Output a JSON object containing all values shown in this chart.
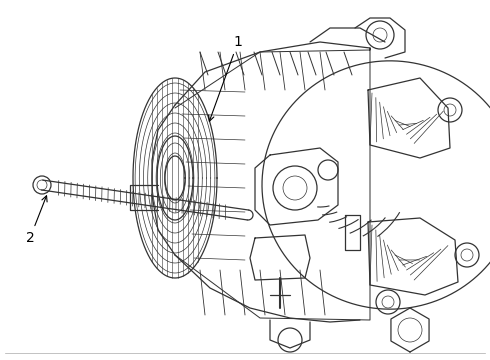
{
  "background_color": "#ffffff",
  "line_color": "#333333",
  "line_width": 0.9,
  "label_1": "1",
  "label_2": "2",
  "fig_width": 4.9,
  "fig_height": 3.6,
  "dpi": 100
}
